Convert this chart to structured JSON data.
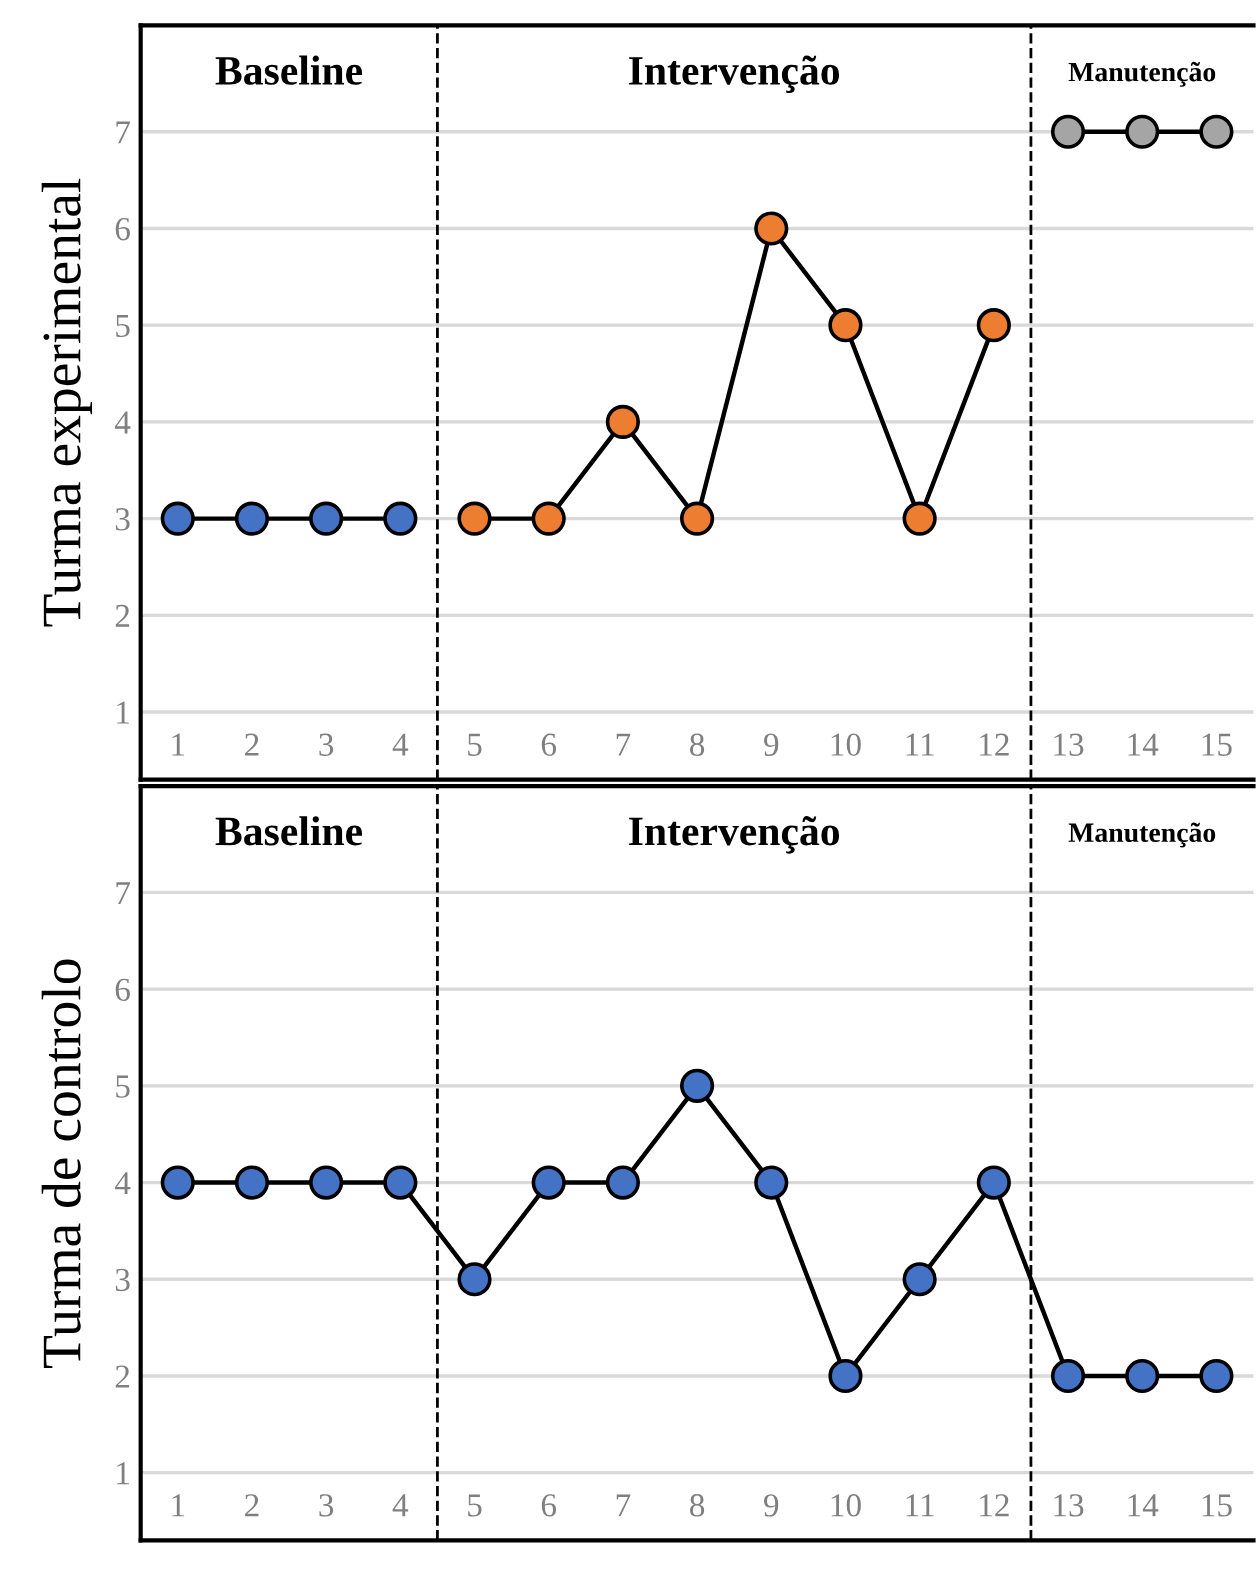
{
  "chart_data": [
    {
      "type": "line",
      "ylabel": "Turma experimental",
      "xlim": [
        0.5,
        15.5
      ],
      "ylim": [
        0.3,
        8.1
      ],
      "xticks": [
        1,
        2,
        3,
        4,
        5,
        6,
        7,
        8,
        9,
        10,
        11,
        12,
        13,
        14,
        15
      ],
      "yticks": [
        1,
        2,
        3,
        4,
        5,
        6,
        7
      ],
      "grid": "y",
      "marker": "circle",
      "line_style": "solid",
      "series": [
        {
          "color": "#4472c4",
          "x": [
            1,
            2,
            3,
            4
          ],
          "values": [
            3,
            3,
            3,
            3
          ]
        },
        {
          "color": "#ed7d31",
          "x": [
            5,
            6,
            7,
            8,
            9,
            10,
            11,
            12
          ],
          "values": [
            3,
            3,
            4,
            3,
            6,
            5,
            3,
            5
          ]
        },
        {
          "color": "#a5a5a5",
          "x": [
            13,
            14,
            15
          ],
          "values": [
            7,
            7,
            7
          ]
        }
      ],
      "ref_lines": [
        {
          "axis": "x",
          "value": 4.5,
          "line_style": "dashed",
          "color": "#000000"
        },
        {
          "axis": "x",
          "value": 12.5,
          "line_style": "dashed",
          "color": "#000000"
        }
      ],
      "annotations": [
        "Baseline",
        "Intervenção",
        "Manutenção"
      ]
    },
    {
      "type": "line",
      "ylabel": "Turma de controlo",
      "xlim": [
        0.5,
        15.5
      ],
      "ylim": [
        0.3,
        8.1
      ],
      "xticks": [
        1,
        2,
        3,
        4,
        5,
        6,
        7,
        8,
        9,
        10,
        11,
        12,
        13,
        14,
        15
      ],
      "yticks": [
        1,
        2,
        3,
        4,
        5,
        6,
        7
      ],
      "grid": "y",
      "marker": "circle",
      "line_style": "solid",
      "series": [
        {
          "color": "#4472c4",
          "x": [
            1,
            2,
            3,
            4,
            5,
            6,
            7,
            8,
            9,
            10,
            11,
            12,
            13,
            14,
            15
          ],
          "values": [
            4,
            4,
            4,
            4,
            3,
            4,
            4,
            5,
            4,
            2,
            3,
            4,
            2,
            2,
            2
          ]
        }
      ],
      "ref_lines": [
        {
          "axis": "x",
          "value": 4.5,
          "line_style": "dashed",
          "color": "#000000"
        },
        {
          "axis": "x",
          "value": 12.5,
          "line_style": "dashed",
          "color": "#000000"
        }
      ],
      "annotations": [
        "Baseline",
        "Intervenção",
        "Manutenção"
      ]
    }
  ]
}
